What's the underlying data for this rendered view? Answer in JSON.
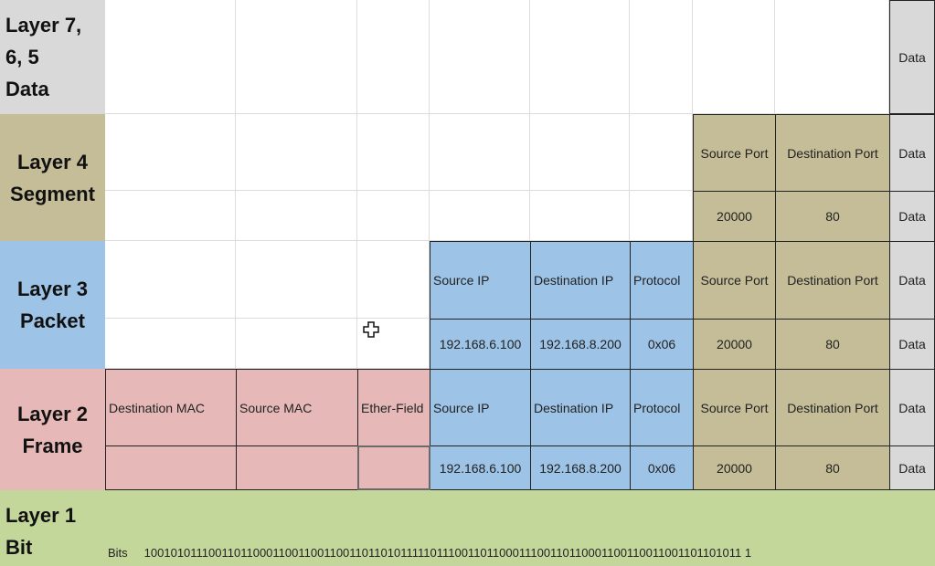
{
  "layers": {
    "l7": {
      "line1": "Layer 7,",
      "line2": "6, 5",
      "line3": "Data"
    },
    "l4": {
      "line1": "Layer 4",
      "line2": "Segment"
    },
    "l3": {
      "line1": "Layer 3",
      "line2": "Packet"
    },
    "l2": {
      "line1": "Layer 2",
      "line2": "Frame"
    },
    "l1": {
      "line1": "Layer 1",
      "line2": "Bit"
    }
  },
  "data_label": "Data",
  "segment": {
    "src_port_label": "Source Port",
    "dst_port_label": "Destination Port",
    "src_port": "20000",
    "dst_port": "80"
  },
  "packet": {
    "src_ip_label": "Source IP",
    "dst_ip_label": "Destination IP",
    "protocol_label": "Protocol",
    "src_ip": "192.168.6.100",
    "dst_ip": "192.168.8.200",
    "protocol": "0x06"
  },
  "frame": {
    "dst_mac_label": "Destination MAC",
    "src_mac_label": "Source MAC",
    "ether_label": "Ether-Field"
  },
  "bits": {
    "label": "Bits",
    "value": "1001010111001101100011001100110011011010111110111001101100011100110110001100110011001101101011 1"
  },
  "colors": {
    "l7": "#d9d9d9",
    "l4": "#c4bd97",
    "l3": "#9dc3e6",
    "l2": "#e6b9b8",
    "l1": "#c4d79b"
  }
}
